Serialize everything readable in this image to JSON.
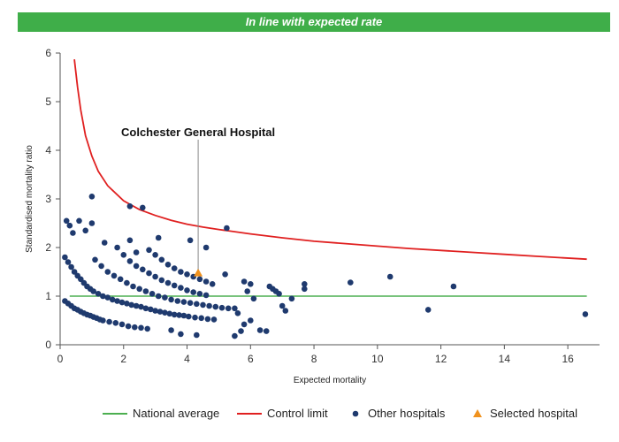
{
  "banner": {
    "text": "In line with expected rate"
  },
  "chart_data": {
    "type": "scatter",
    "title": "",
    "xlabel": "Expected mortality",
    "ylabel": "Standardised mortality ratio",
    "xlim": [
      0,
      17
    ],
    "ylim": [
      0,
      6
    ],
    "x_ticks": [
      0,
      2,
      4,
      6,
      8,
      10,
      12,
      14,
      16
    ],
    "y_ticks": [
      0,
      1,
      2,
      3,
      4,
      5,
      6
    ],
    "grid": false,
    "legend_position": "bottom",
    "annotation": {
      "text": "Colchester General Hospital",
      "x": 4.35,
      "y": 1.48
    },
    "colors": {
      "national_average": "#4caf50",
      "control_limit": "#e02020",
      "other_hospitals": "#1f3a6e",
      "selected_hospital": "#f0921e"
    },
    "series": [
      {
        "name": "National average",
        "type": "line",
        "points": [
          [
            0.3,
            1
          ],
          [
            16.6,
            1
          ]
        ]
      },
      {
        "name": "Control limit",
        "type": "line",
        "points": [
          [
            0.45,
            5.87
          ],
          [
            0.55,
            5.3
          ],
          [
            0.65,
            4.83
          ],
          [
            0.8,
            4.3
          ],
          [
            1.0,
            3.88
          ],
          [
            1.2,
            3.57
          ],
          [
            1.5,
            3.27
          ],
          [
            2.0,
            2.96
          ],
          [
            2.5,
            2.78
          ],
          [
            3.0,
            2.66
          ],
          [
            3.5,
            2.56
          ],
          [
            4.0,
            2.48
          ],
          [
            4.5,
            2.42
          ],
          [
            5.0,
            2.37
          ],
          [
            6.0,
            2.28
          ],
          [
            7.0,
            2.2
          ],
          [
            8.0,
            2.13
          ],
          [
            9.0,
            2.08
          ],
          [
            10.0,
            2.03
          ],
          [
            11.0,
            1.98
          ],
          [
            12.0,
            1.94
          ],
          [
            13.0,
            1.9
          ],
          [
            14.0,
            1.86
          ],
          [
            15.0,
            1.82
          ],
          [
            16.6,
            1.76
          ]
        ]
      },
      {
        "name": "Other hospitals",
        "type": "scatter",
        "points": [
          [
            0.15,
            0.9
          ],
          [
            0.25,
            0.85
          ],
          [
            0.35,
            0.8
          ],
          [
            0.45,
            0.75
          ],
          [
            0.55,
            0.72
          ],
          [
            0.65,
            0.68
          ],
          [
            0.75,
            0.65
          ],
          [
            0.85,
            0.62
          ],
          [
            0.95,
            0.6
          ],
          [
            1.05,
            0.57
          ],
          [
            1.15,
            0.55
          ],
          [
            1.25,
            0.52
          ],
          [
            1.35,
            0.5
          ],
          [
            1.55,
            0.47
          ],
          [
            1.75,
            0.45
          ],
          [
            1.95,
            0.42
          ],
          [
            2.15,
            0.38
          ],
          [
            2.35,
            0.36
          ],
          [
            2.55,
            0.35
          ],
          [
            2.75,
            0.33
          ],
          [
            0.15,
            1.8
          ],
          [
            0.25,
            1.7
          ],
          [
            0.35,
            1.6
          ],
          [
            0.45,
            1.5
          ],
          [
            0.55,
            1.42
          ],
          [
            0.65,
            1.35
          ],
          [
            0.75,
            1.27
          ],
          [
            0.85,
            1.2
          ],
          [
            0.95,
            1.15
          ],
          [
            1.05,
            1.1
          ],
          [
            1.2,
            1.05
          ],
          [
            1.35,
            1.0
          ],
          [
            1.5,
            0.97
          ],
          [
            1.65,
            0.93
          ],
          [
            1.8,
            0.9
          ],
          [
            1.95,
            0.87
          ],
          [
            2.1,
            0.85
          ],
          [
            2.25,
            0.82
          ],
          [
            2.4,
            0.8
          ],
          [
            2.55,
            0.78
          ],
          [
            2.7,
            0.75
          ],
          [
            2.85,
            0.73
          ],
          [
            3.0,
            0.7
          ],
          [
            3.15,
            0.68
          ],
          [
            3.3,
            0.66
          ],
          [
            3.45,
            0.64
          ],
          [
            3.6,
            0.62
          ],
          [
            3.75,
            0.61
          ],
          [
            3.9,
            0.6
          ],
          [
            4.05,
            0.58
          ],
          [
            4.25,
            0.56
          ],
          [
            4.45,
            0.55
          ],
          [
            4.65,
            0.53
          ],
          [
            4.85,
            0.52
          ],
          [
            1.1,
            1.75
          ],
          [
            1.3,
            1.62
          ],
          [
            1.5,
            1.5
          ],
          [
            1.7,
            1.42
          ],
          [
            1.9,
            1.35
          ],
          [
            2.1,
            1.27
          ],
          [
            2.3,
            1.2
          ],
          [
            2.5,
            1.15
          ],
          [
            2.7,
            1.1
          ],
          [
            2.9,
            1.05
          ],
          [
            3.1,
            1.0
          ],
          [
            3.3,
            0.97
          ],
          [
            3.5,
            0.93
          ],
          [
            3.7,
            0.9
          ],
          [
            3.9,
            0.88
          ],
          [
            4.1,
            0.86
          ],
          [
            4.3,
            0.84
          ],
          [
            4.5,
            0.82
          ],
          [
            4.7,
            0.8
          ],
          [
            4.9,
            0.78
          ],
          [
            5.1,
            0.76
          ],
          [
            1.8,
            2.0
          ],
          [
            2.0,
            1.85
          ],
          [
            2.2,
            1.72
          ],
          [
            2.4,
            1.62
          ],
          [
            2.6,
            1.55
          ],
          [
            2.8,
            1.47
          ],
          [
            3.0,
            1.4
          ],
          [
            3.2,
            1.33
          ],
          [
            3.4,
            1.27
          ],
          [
            3.6,
            1.22
          ],
          [
            3.8,
            1.17
          ],
          [
            4.0,
            1.12
          ],
          [
            4.2,
            1.08
          ],
          [
            4.4,
            1.05
          ],
          [
            4.6,
            1.02
          ],
          [
            2.8,
            1.95
          ],
          [
            3.0,
            1.85
          ],
          [
            3.2,
            1.75
          ],
          [
            3.4,
            1.65
          ],
          [
            3.6,
            1.57
          ],
          [
            3.8,
            1.5
          ],
          [
            4.0,
            1.45
          ],
          [
            4.2,
            1.4
          ],
          [
            4.4,
            1.35
          ],
          [
            4.6,
            1.3
          ],
          [
            4.8,
            1.25
          ],
          [
            0.2,
            2.55
          ],
          [
            0.3,
            2.45
          ],
          [
            0.4,
            2.3
          ],
          [
            0.6,
            2.55
          ],
          [
            0.8,
            2.35
          ],
          [
            1.0,
            3.05
          ],
          [
            1.0,
            2.5
          ],
          [
            2.2,
            2.85
          ],
          [
            2.6,
            2.82
          ],
          [
            5.25,
            2.4
          ],
          [
            1.4,
            2.1
          ],
          [
            2.2,
            2.15
          ],
          [
            3.1,
            2.2
          ],
          [
            4.1,
            2.15
          ],
          [
            4.6,
            2.0
          ],
          [
            2.4,
            1.9
          ],
          [
            5.2,
            1.45
          ],
          [
            5.3,
            0.75
          ],
          [
            5.5,
            0.75
          ],
          [
            5.6,
            0.65
          ],
          [
            5.8,
            1.3
          ],
          [
            5.9,
            1.1
          ],
          [
            6.0,
            1.25
          ],
          [
            6.1,
            0.95
          ],
          [
            6.3,
            0.3
          ],
          [
            6.5,
            0.28
          ],
          [
            6.6,
            1.2
          ],
          [
            6.7,
            1.15
          ],
          [
            6.8,
            1.1
          ],
          [
            6.9,
            1.05
          ],
          [
            7.0,
            0.8
          ],
          [
            7.1,
            0.7
          ],
          [
            7.3,
            0.95
          ],
          [
            7.7,
            1.25
          ],
          [
            7.7,
            1.15
          ],
          [
            9.15,
            1.28
          ],
          [
            10.4,
            1.4
          ],
          [
            11.6,
            0.72
          ],
          [
            12.4,
            1.2
          ],
          [
            16.55,
            0.63
          ],
          [
            3.5,
            0.3
          ],
          [
            3.8,
            0.22
          ],
          [
            4.3,
            0.2
          ],
          [
            5.5,
            0.18
          ],
          [
            5.7,
            0.28
          ],
          [
            5.8,
            0.42
          ],
          [
            6.0,
            0.5
          ]
        ]
      },
      {
        "name": "Selected hospital",
        "type": "scatter",
        "points": [
          [
            4.35,
            1.48
          ]
        ]
      }
    ]
  }
}
